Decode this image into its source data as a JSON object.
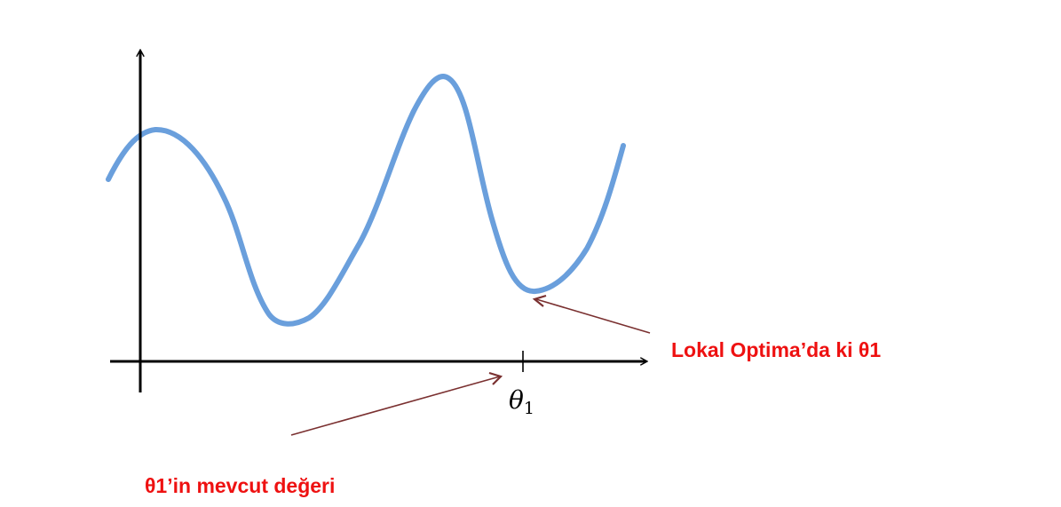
{
  "diagram": {
    "tick_label": "θ",
    "tick_label_subscript": "1",
    "annotation_local_optimum": "Lokal Optima’da ki θ1",
    "annotation_current_value": "θ1’in mevcut değeri",
    "colors": {
      "curve": "#6a9fdc",
      "axes": "#000000",
      "arrows": "#7a3030",
      "annotation_text": "#ee1111"
    }
  }
}
